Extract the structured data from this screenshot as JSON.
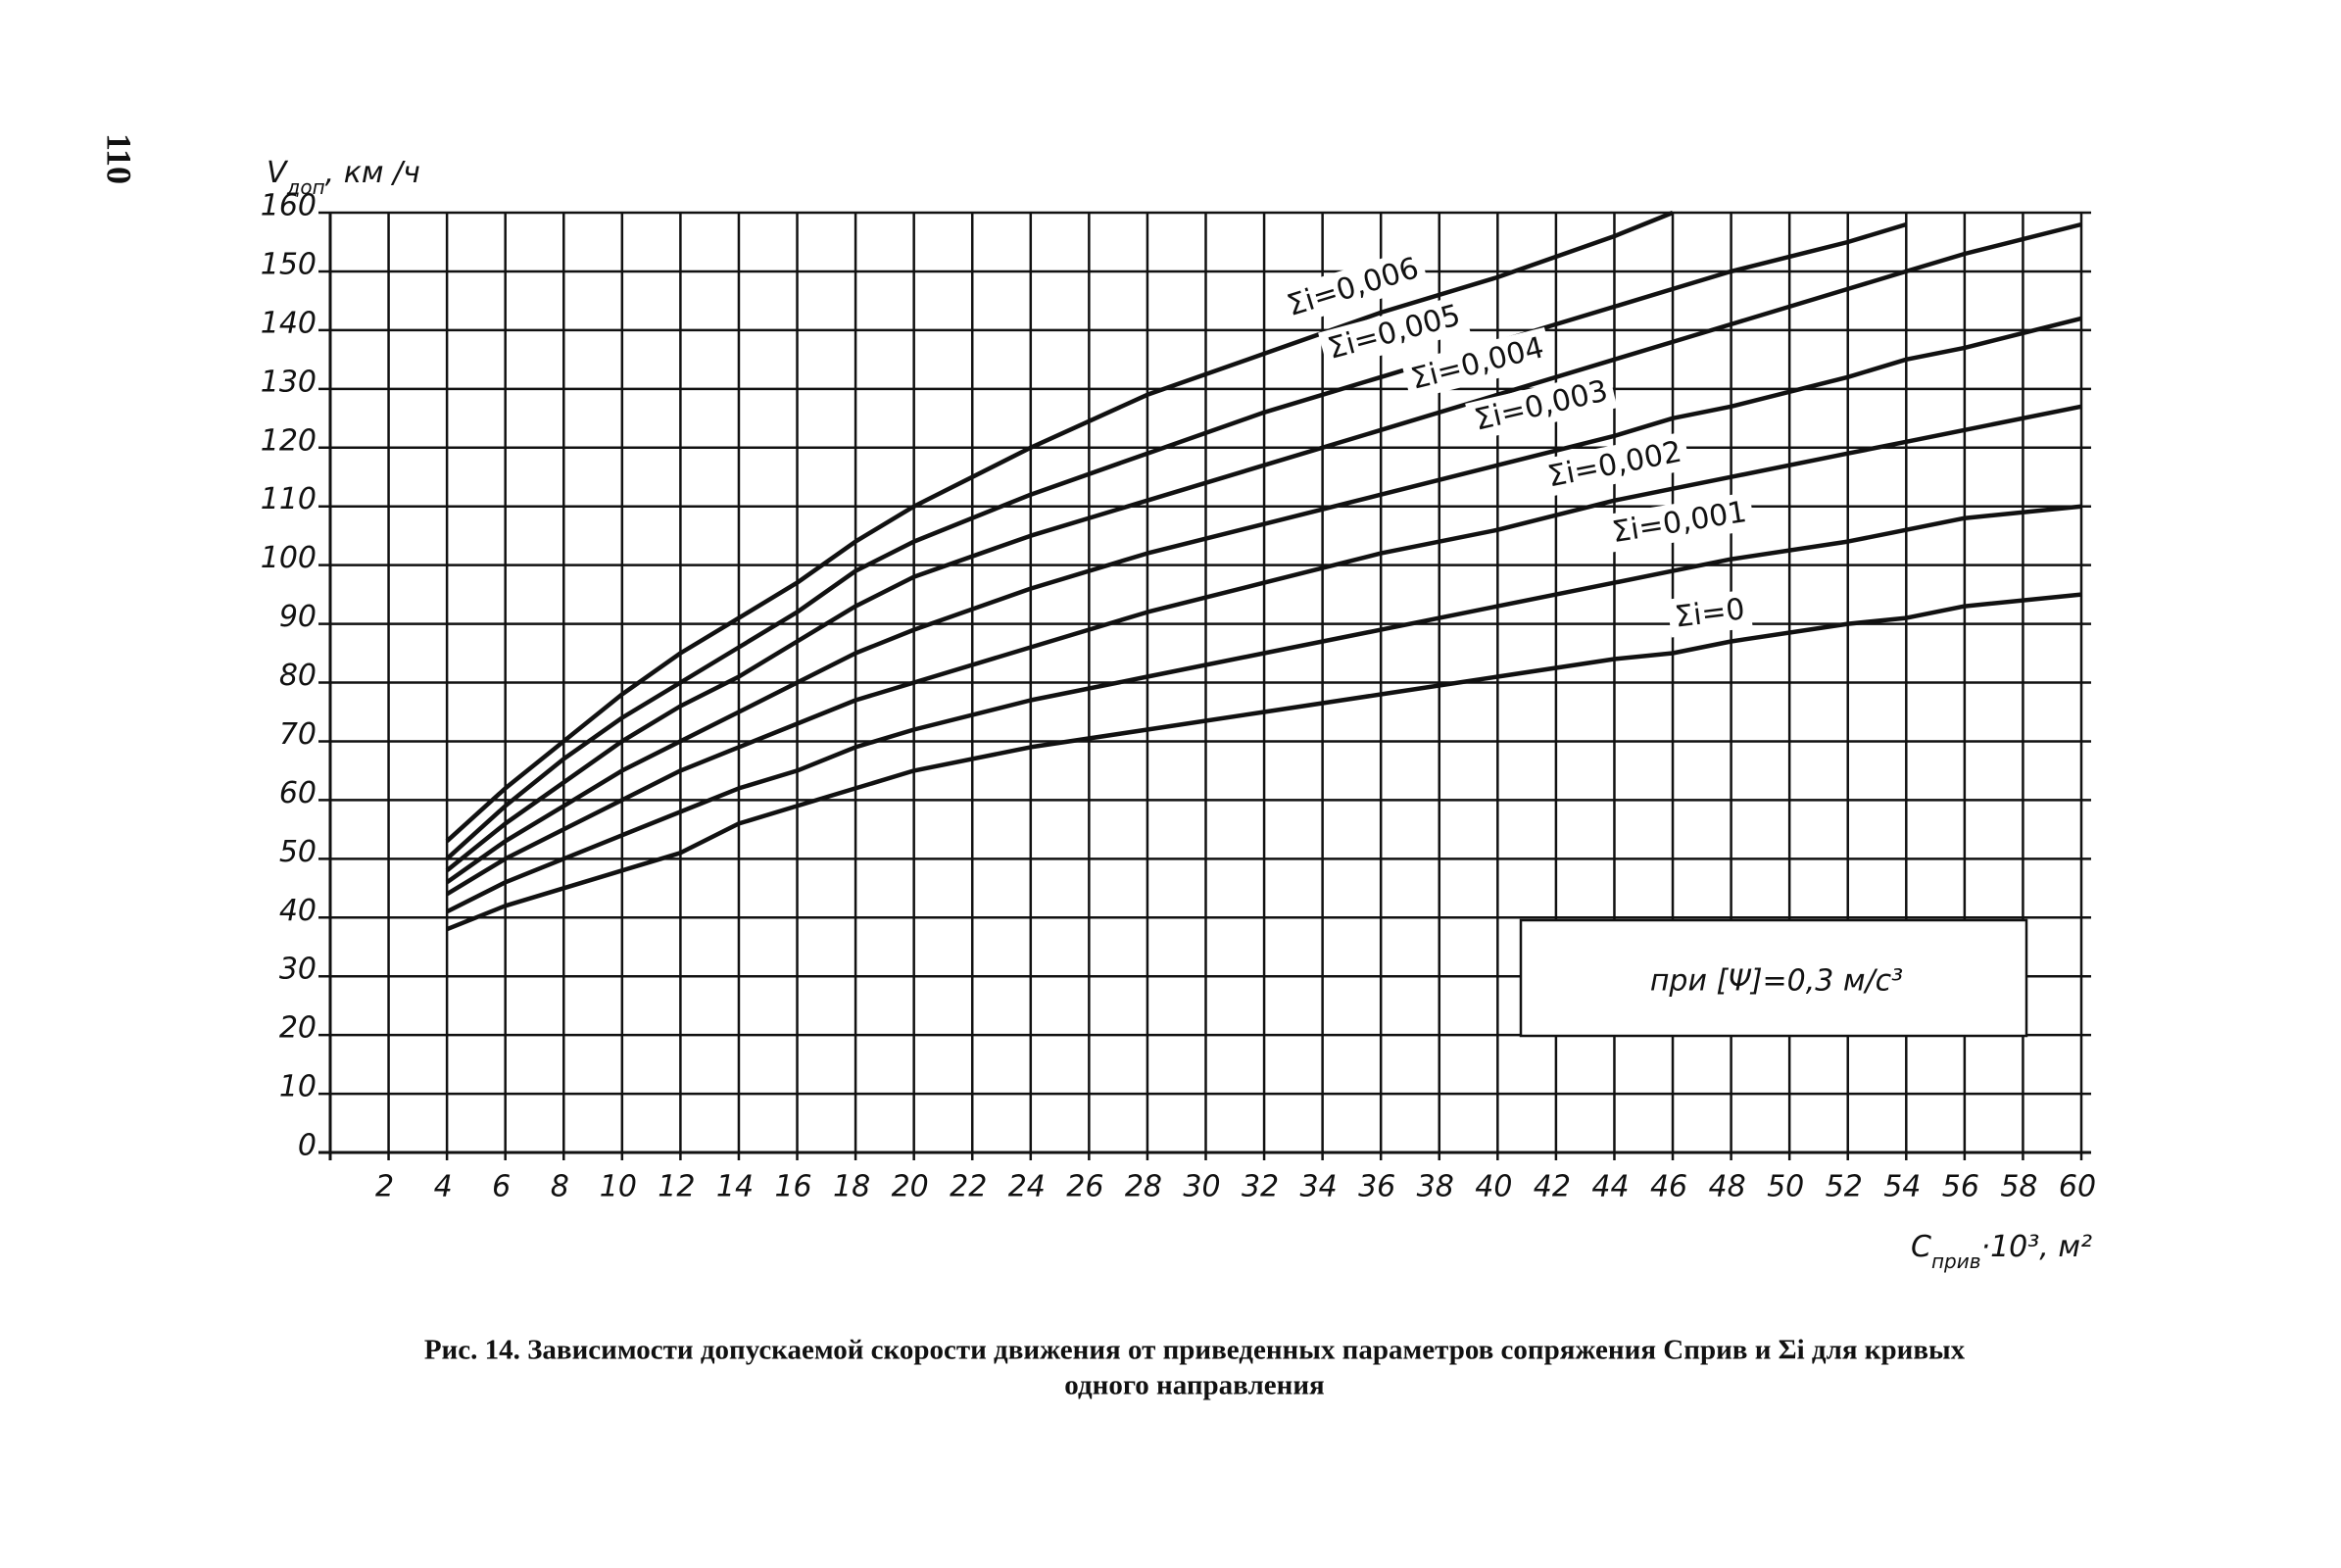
{
  "page_number": "110",
  "chart_data": {
    "type": "line",
    "y_label": {
      "main": "V",
      "sub": "доп",
      "rest": ", км /ч"
    },
    "x_label": {
      "main": "C",
      "sub": "прив",
      "rest": "·10³, м²"
    },
    "annotation": "при [Ψ]=0,3 м/с³",
    "caption": [
      "Рис. 14. Зависимости допускаемой скорости движения от приведенных параметров сопряжения Cприв и Σi для кривых",
      "одного направления"
    ],
    "x": [
      4,
      6,
      8,
      10,
      12,
      14,
      16,
      18,
      20,
      24,
      28,
      32,
      36,
      40,
      44,
      46,
      48,
      52,
      54,
      56,
      60
    ],
    "series": [
      {
        "name": "Σi=0,006",
        "color": "#111111",
        "values": [
          53,
          62,
          70,
          78,
          85,
          91,
          97,
          104,
          110,
          120,
          129,
          136,
          143,
          149,
          156,
          160,
          null,
          null,
          null,
          null,
          null
        ]
      },
      {
        "name": "Σi=0,005",
        "color": "#111111",
        "values": [
          50,
          59,
          67,
          74,
          80,
          86,
          92,
          99,
          104,
          112,
          119,
          126,
          132,
          138,
          144,
          147,
          150,
          155,
          158,
          null,
          null
        ]
      },
      {
        "name": "Σi=0,004",
        "color": "#111111",
        "values": [
          48,
          56,
          63,
          70,
          76,
          81,
          87,
          93,
          98,
          105,
          111,
          117,
          123,
          129,
          135,
          138,
          141,
          147,
          150,
          153,
          158
        ]
      },
      {
        "name": "Σi=0,003",
        "color": "#111111",
        "values": [
          46,
          53,
          59,
          65,
          70,
          75,
          80,
          85,
          89,
          96,
          102,
          107,
          112,
          117,
          122,
          125,
          127,
          132,
          135,
          137,
          142
        ]
      },
      {
        "name": "Σi=0,002",
        "color": "#111111",
        "values": [
          44,
          50,
          55,
          60,
          65,
          69,
          73,
          77,
          80,
          86,
          92,
          97,
          102,
          106,
          111,
          113,
          115,
          119,
          121,
          123,
          127
        ]
      },
      {
        "name": "Σi=0,001",
        "color": "#111111",
        "values": [
          41,
          46,
          50,
          54,
          58,
          62,
          65,
          69,
          72,
          77,
          81,
          85,
          89,
          93,
          97,
          99,
          101,
          104,
          106,
          108,
          110
        ]
      },
      {
        "name": "Σi=0",
        "color": "#111111",
        "values": [
          38,
          42,
          45,
          48,
          51,
          56,
          59,
          62,
          65,
          69,
          72,
          75,
          78,
          81,
          84,
          85,
          87,
          90,
          91,
          93,
          95
        ]
      }
    ],
    "xlim": [
      0,
      60
    ],
    "ylim": [
      0,
      160
    ],
    "xticks": [
      2,
      4,
      6,
      8,
      10,
      12,
      14,
      16,
      18,
      20,
      22,
      24,
      26,
      28,
      30,
      32,
      34,
      36,
      38,
      40,
      42,
      44,
      46,
      48,
      50,
      52,
      54,
      56,
      58,
      60
    ],
    "yticks": [
      0,
      10,
      20,
      30,
      40,
      50,
      60,
      70,
      80,
      90,
      100,
      110,
      120,
      130,
      140,
      150,
      160
    ],
    "grid": true
  }
}
